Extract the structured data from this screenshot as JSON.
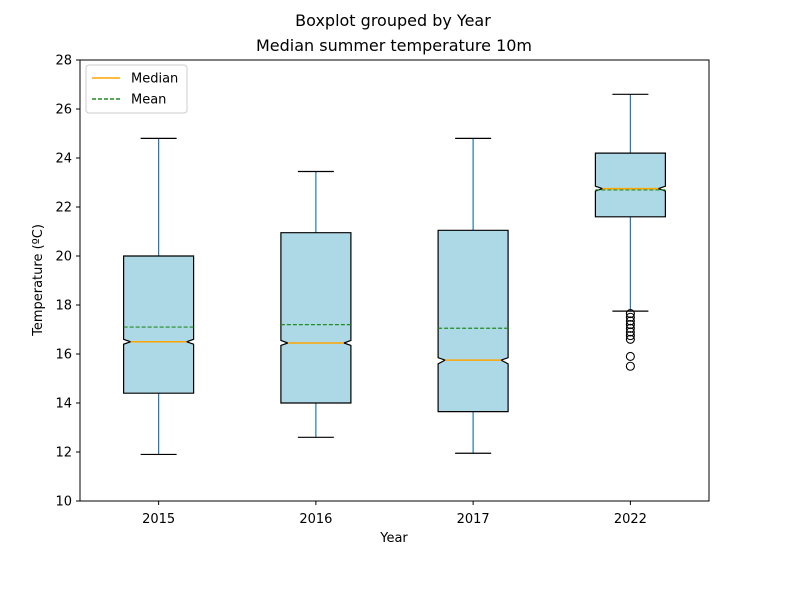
{
  "suptitle": "Boxplot grouped by Year",
  "chart_data": {
    "type": "boxplot",
    "title": "Median summer temperature 10m",
    "xlabel": "Year",
    "ylabel": "Temperature (ºC)",
    "ylim": [
      10,
      28
    ],
    "yticks": [
      10,
      12,
      14,
      16,
      18,
      20,
      22,
      24,
      26,
      28
    ],
    "categories": [
      "2015",
      "2016",
      "2017",
      "2022"
    ],
    "notched": true,
    "box_color": "#add8e6",
    "whisker_color": "#1f77b4",
    "median_color": "#ffa500",
    "mean_color": "#228b22",
    "legend": {
      "position": "top-left",
      "entries": [
        {
          "label": "Median",
          "style": "solid",
          "color": "#ffa500"
        },
        {
          "label": "Mean",
          "style": "dashed",
          "color": "#228b22"
        }
      ]
    },
    "boxes": [
      {
        "category": "2015",
        "whislo": 11.9,
        "q1": 14.4,
        "median": 16.5,
        "q3": 20.0,
        "whishi": 24.8,
        "mean": 17.1,
        "notch_lo": 16.4,
        "notch_hi": 16.6,
        "fliers": []
      },
      {
        "category": "2016",
        "whislo": 12.6,
        "q1": 14.0,
        "median": 16.45,
        "q3": 20.95,
        "whishi": 23.45,
        "mean": 17.2,
        "notch_lo": 16.35,
        "notch_hi": 16.55,
        "fliers": []
      },
      {
        "category": "2017",
        "whislo": 11.95,
        "q1": 13.65,
        "median": 15.75,
        "q3": 21.05,
        "whishi": 24.8,
        "mean": 17.05,
        "notch_lo": 15.6,
        "notch_hi": 15.85,
        "fliers": []
      },
      {
        "category": "2022",
        "whislo": 17.75,
        "q1": 21.6,
        "median": 22.75,
        "q3": 24.2,
        "whishi": 26.6,
        "mean": 22.7,
        "notch_lo": 22.65,
        "notch_hi": 22.85,
        "fliers": [
          17.65,
          17.5,
          17.35,
          17.2,
          17.05,
          16.9,
          16.75,
          16.6,
          15.9,
          15.5
        ]
      }
    ]
  }
}
